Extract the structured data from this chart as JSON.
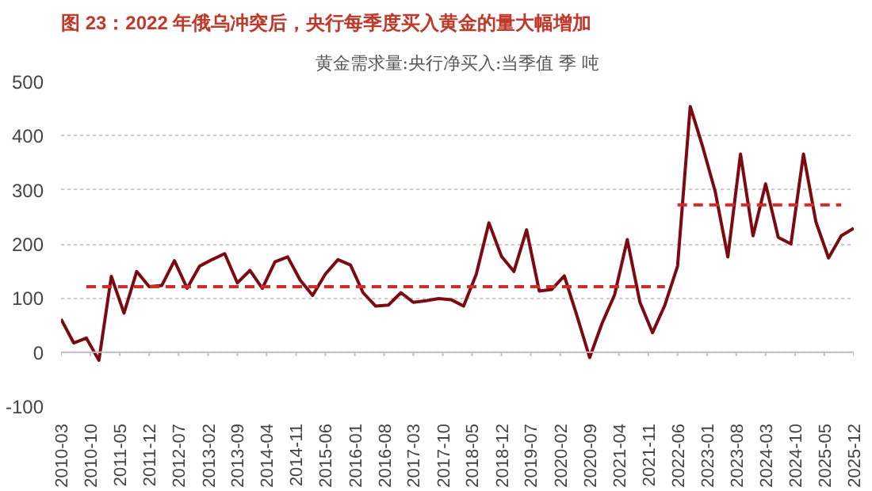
{
  "chart_data": {
    "type": "line",
    "title": "图 23：2022 年俄乌冲突后，央行每季度买入黄金的量大幅增加",
    "subtitle": "黄金需求量:央行净买入:当季值 季 吨",
    "x": [
      "2010-03",
      "2010-06",
      "2010-09",
      "2010-12",
      "2011-03",
      "2011-06",
      "2011-09",
      "2011-12",
      "2012-03",
      "2012-06",
      "2012-09",
      "2012-12",
      "2013-03",
      "2013-06",
      "2013-09",
      "2013-12",
      "2014-03",
      "2014-06",
      "2014-09",
      "2014-12",
      "2015-03",
      "2015-06",
      "2015-09",
      "2015-12",
      "2016-03",
      "2016-06",
      "2016-09",
      "2016-12",
      "2017-03",
      "2017-06",
      "2017-09",
      "2017-12",
      "2018-03",
      "2018-06",
      "2018-09",
      "2018-12",
      "2019-03",
      "2019-06",
      "2019-09",
      "2019-12",
      "2020-03",
      "2020-06",
      "2020-09",
      "2020-12",
      "2021-03",
      "2021-06",
      "2021-09",
      "2021-12",
      "2022-03",
      "2022-06",
      "2022-09",
      "2022-12",
      "2023-03",
      "2023-06",
      "2023-09",
      "2023-12",
      "2024-03",
      "2024-06",
      "2024-09",
      "2024-12",
      "2025-03",
      "2025-06",
      "2025-09",
      "2025-12"
    ],
    "series": [
      {
        "color": "#7b0a12",
        "values": [
          61,
          17,
          26,
          -15,
          140,
          72,
          149,
          121,
          123,
          169,
          118,
          159,
          171,
          182,
          128,
          151,
          118,
          167,
          176,
          133,
          105,
          144,
          171,
          161,
          110,
          85,
          87,
          110,
          92,
          95,
          99,
          97,
          85,
          144,
          239,
          177,
          149,
          226,
          113,
          116,
          141,
          67,
          -10,
          54,
          106,
          208,
          92,
          36,
          87,
          159,
          454,
          379,
          297,
          176,
          366,
          215,
          311,
          212,
          200,
          366,
          241,
          174,
          215,
          229
        ]
      },
      {
        "color": "#d42a2a",
        "line_style": "dashed",
        "x": [
          "2010-09",
          "2022-03"
        ],
        "values": [
          121,
          121
        ]
      },
      {
        "color": "#d42a2a",
        "line_style": "dashed",
        "x": [
          "2022-06",
          "2025-09"
        ],
        "values": [
          272,
          272
        ]
      }
    ],
    "line_style": "solid",
    "marker": "none",
    "xlim": [
      "2010-03",
      "2025-12"
    ],
    "xticks": [
      "2010-03",
      "2010-10",
      "2011-05",
      "2011-12",
      "2012-07",
      "2013-02",
      "2013-09",
      "2014-04",
      "2014-11",
      "2015-06",
      "2016-01",
      "2016-08",
      "2017-03",
      "2017-10",
      "2018-05",
      "2018-12",
      "2019-07",
      "2020-02",
      "2020-09",
      "2021-04",
      "2021-11",
      "2022-06",
      "2023-01",
      "2023-08",
      "2024-03",
      "2024-10",
      "2025-05",
      "2025-12"
    ],
    "ylim": [
      -100,
      500
    ],
    "yticks": [
      -100,
      0,
      100,
      200,
      300,
      400,
      500
    ],
    "grid": "y",
    "ref_lines": [
      {
        "axis": "y",
        "value": 0,
        "color": "#bfbfbf",
        "line_style": "solid"
      }
    ]
  }
}
